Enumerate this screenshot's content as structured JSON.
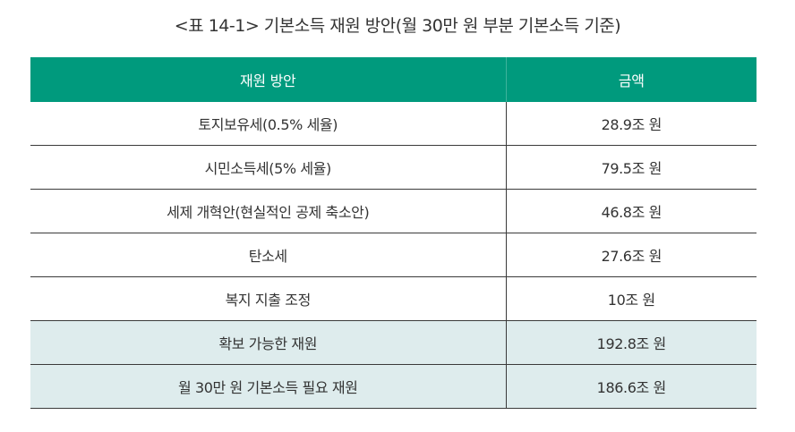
{
  "title": "<표 14-1> 기본소득 재원 방안(월 30만 원 부분 기본소득 기준)",
  "colors": {
    "header_bg": "#009a7d",
    "summary_bg": "#deeced"
  },
  "table": {
    "headers": [
      "재원 방안",
      "금액"
    ],
    "rows": [
      {
        "label": "토지보유세(0.5% 세율)",
        "amount": "28.9조 원"
      },
      {
        "label": "시민소득세(5% 세율)",
        "amount": "79.5조 원"
      },
      {
        "label": "세제 개혁안(현실적인 공제 축소안)",
        "amount": "46.8조 원"
      },
      {
        "label": "탄소세",
        "amount": "27.6조 원"
      },
      {
        "label": "복지 지출 조정",
        "amount": "10조 원"
      },
      {
        "label": "확보 가능한 재원",
        "amount": "192.8조 원"
      },
      {
        "label": "월 30만 원 기본소득 필요 재원",
        "amount": "186.6조 원"
      }
    ]
  }
}
